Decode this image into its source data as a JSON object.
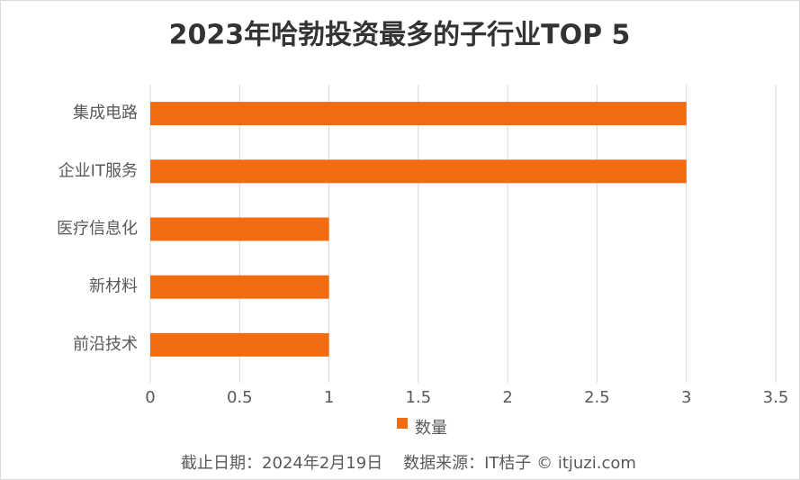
{
  "chart_data": {
    "type": "bar",
    "orientation": "horizontal",
    "title": "2023年哈勃投资最多的子行业TOP 5",
    "categories": [
      "集成电路",
      "企业IT服务",
      "医疗信息化",
      "新材料",
      "前沿技术"
    ],
    "series": [
      {
        "name": "数量",
        "color": "#f26b0f",
        "values": [
          3,
          3,
          1,
          1,
          1
        ]
      }
    ],
    "xlim": [
      0,
      3.5
    ],
    "xticks": [
      0,
      0.5,
      1,
      1.5,
      2,
      2.5,
      3,
      3.5
    ],
    "grid": true,
    "legend": "bottom",
    "source": "截止日期：2024年2月19日    数据来源：IT桔子 © itjuzi.com"
  }
}
